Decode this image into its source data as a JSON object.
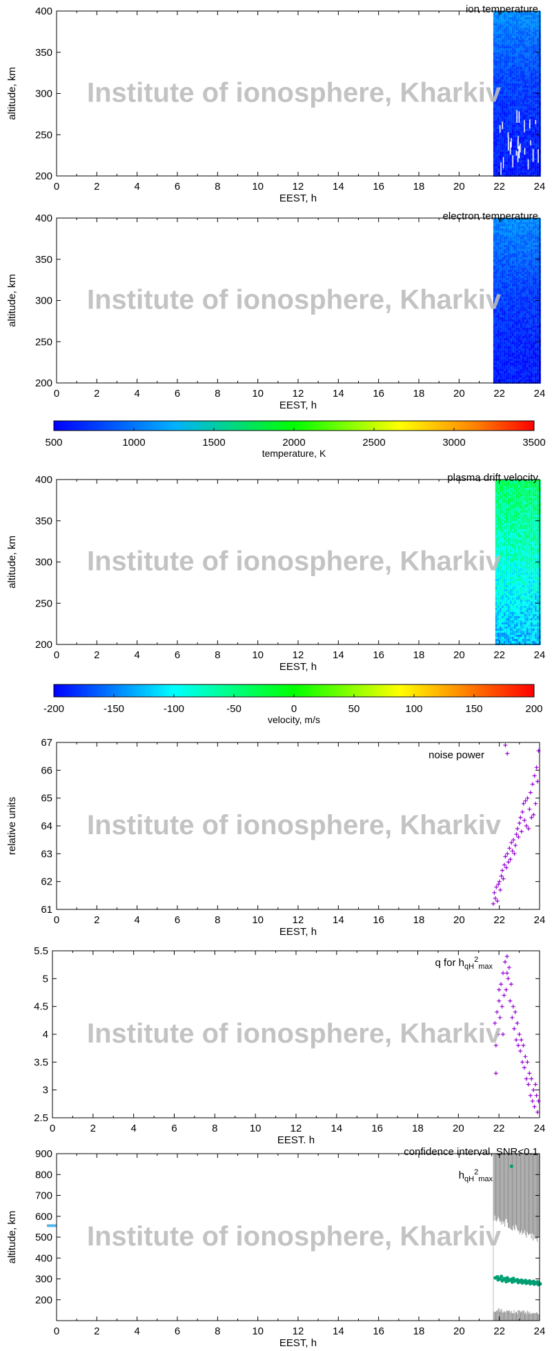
{
  "watermark": "Institute of ionosphere, Kharkiv",
  "colorbars": [
    {
      "label": "temperature, K",
      "ticks": [
        "500",
        "1000",
        "1500",
        "2000",
        "2500",
        "3000",
        "3500"
      ]
    },
    {
      "label": "velocity, m/s",
      "ticks": [
        "-200",
        "-150",
        "-100",
        "-50",
        "0",
        "50",
        "100",
        "150",
        "200"
      ]
    }
  ],
  "chart_data": [
    {
      "type": "heatmap",
      "title": "ion temperature",
      "xlabel": "EEST, h",
      "ylabel": "altitude, km",
      "xlim": [
        0,
        24
      ],
      "ylim": [
        200,
        400
      ],
      "xticks": [
        "0",
        "2",
        "4",
        "6",
        "8",
        "10",
        "12",
        "14",
        "16",
        "18",
        "20",
        "22",
        "24"
      ],
      "yticks": [
        "200",
        "250",
        "300",
        "350",
        "400"
      ],
      "data_x_range": [
        21.7,
        24
      ],
      "colorscale": "temperature, K",
      "value_range": [
        500,
        3500
      ],
      "typical_value": "≈800–1300 K, higher near 400 km"
    },
    {
      "type": "heatmap",
      "title": "electron temperature",
      "xlabel": "EEST, h",
      "ylabel": "altitude, km",
      "xlim": [
        0,
        24
      ],
      "ylim": [
        200,
        400
      ],
      "xticks": [
        "0",
        "2",
        "4",
        "6",
        "8",
        "10",
        "12",
        "14",
        "16",
        "18",
        "20",
        "22",
        "24"
      ],
      "yticks": [
        "200",
        "250",
        "300",
        "350",
        "400"
      ],
      "data_x_range": [
        21.7,
        24
      ],
      "colorscale": "temperature, K",
      "value_range": [
        500,
        3500
      ],
      "typical_value": "≈800–1300 K"
    },
    {
      "type": "heatmap",
      "title": "plasma drift velocity",
      "xlabel": "EEST, h",
      "ylabel": "altitude, km",
      "xlim": [
        0,
        24
      ],
      "ylim": [
        200,
        400
      ],
      "xticks": [
        "0",
        "2",
        "4",
        "6",
        "8",
        "10",
        "12",
        "14",
        "16",
        "18",
        "20",
        "22",
        "24"
      ],
      "yticks": [
        "200",
        "250",
        "300",
        "350",
        "400"
      ],
      "data_x_range": [
        21.8,
        24
      ],
      "colorscale": "velocity, m/s",
      "value_range": [
        -200,
        200
      ],
      "typical_value": "≈-100 to -20 m/s"
    },
    {
      "type": "scatter",
      "title": "noise power",
      "xlabel": "EEST, h",
      "ylabel": "relative units",
      "xlim": [
        0,
        24
      ],
      "ylim": [
        61,
        67
      ],
      "xticks": [
        "0",
        "2",
        "4",
        "6",
        "8",
        "10",
        "12",
        "14",
        "16",
        "18",
        "20",
        "22",
        "24"
      ],
      "yticks": [
        "61",
        "62",
        "63",
        "64",
        "65",
        "66",
        "67"
      ],
      "x": [
        21.7,
        21.75,
        21.8,
        21.85,
        21.9,
        21.95,
        22.0,
        22.05,
        22.1,
        22.15,
        22.2,
        22.25,
        22.3,
        22.35,
        22.4,
        22.45,
        22.5,
        22.55,
        22.6,
        22.65,
        22.7,
        22.75,
        22.8,
        22.85,
        22.9,
        22.95,
        23.0,
        23.05,
        23.1,
        23.15,
        23.2,
        23.25,
        23.3,
        23.35,
        23.4,
        23.45,
        23.5,
        23.55,
        23.6,
        23.65,
        23.7,
        23.75,
        23.8,
        23.85,
        23.9,
        23.95,
        22.3,
        22.4
      ],
      "y": [
        61.2,
        61.6,
        61.4,
        61.8,
        61.3,
        61.9,
        62.0,
        61.7,
        62.2,
        62.4,
        62.1,
        62.6,
        62.9,
        62.5,
        63.0,
        62.7,
        63.2,
        62.8,
        63.4,
        63.1,
        63.5,
        63.0,
        63.3,
        63.7,
        63.9,
        63.6,
        64.1,
        64.3,
        63.8,
        64.5,
        64.8,
        64.2,
        64.9,
        64.0,
        65.0,
        63.9,
        64.6,
        65.2,
        64.3,
        65.5,
        64.4,
        65.8,
        64.8,
        66.1,
        65.6,
        66.7,
        66.9,
        66.6
      ]
    },
    {
      "type": "scatter",
      "title": "q for h",
      "title_sub": "qH",
      "title_sup": "2",
      "title_sub2": "max",
      "xlabel": "EEST. h",
      "ylabel": "",
      "xlim": [
        0,
        24
      ],
      "ylim": [
        2.5,
        5.5
      ],
      "xticks": [
        "0",
        "2",
        "4",
        "6",
        "8",
        "10",
        "12",
        "14",
        "16",
        "18",
        "20",
        "22",
        "24"
      ],
      "yticks": [
        "2.5",
        "3",
        "3.5",
        "4",
        "4.5",
        "5",
        "5.5"
      ],
      "x": [
        21.8,
        21.85,
        21.9,
        21.95,
        22.0,
        22.05,
        22.1,
        22.15,
        22.2,
        22.25,
        22.3,
        22.35,
        22.4,
        22.45,
        22.5,
        22.55,
        22.6,
        22.65,
        22.7,
        22.75,
        22.8,
        22.85,
        22.9,
        22.95,
        23.0,
        23.05,
        23.1,
        23.15,
        23.2,
        23.25,
        23.3,
        23.35,
        23.4,
        23.45,
        23.5,
        23.55,
        23.6,
        23.65,
        23.7,
        23.75,
        23.8,
        23.85,
        23.9,
        23.95,
        21.85,
        22.0,
        22.2,
        22.4
      ],
      "y": [
        4.2,
        3.3,
        4.4,
        4.0,
        4.6,
        4.3,
        4.9,
        4.5,
        5.1,
        4.7,
        5.3,
        4.8,
        5.4,
        5.0,
        5.2,
        4.6,
        4.9,
        4.3,
        4.5,
        4.1,
        4.4,
        3.9,
        4.2,
        3.8,
        4.0,
        3.7,
        3.9,
        3.5,
        3.8,
        3.4,
        3.6,
        3.2,
        3.5,
        3.1,
        3.3,
        2.9,
        3.2,
        2.8,
        3.0,
        2.7,
        3.1,
        2.9,
        2.6,
        2.8,
        3.8,
        4.8,
        4.0,
        5.1
      ]
    },
    {
      "type": "scatter",
      "title": "confidence interval, SNR<0.1",
      "ylabel": "altitude, km",
      "xlabel": "EEST, h",
      "series_label": "h",
      "series_sub": "qH",
      "series_sup": "2",
      "series_sub2": "max",
      "xlim": [
        0,
        24
      ],
      "ylim": [
        100,
        900
      ],
      "xticks": [
        "0",
        "2",
        "4",
        "6",
        "8",
        "10",
        "12",
        "14",
        "16",
        "18",
        "20",
        "22",
        "24"
      ],
      "yticks": [
        "200",
        "300",
        "400",
        "500",
        "600",
        "700",
        "800",
        "900"
      ],
      "x": [
        21.8,
        21.9,
        22.0,
        22.1,
        22.2,
        22.3,
        22.4,
        22.5,
        22.6,
        22.7,
        22.8,
        22.9,
        23.0,
        23.1,
        23.2,
        23.3,
        23.4,
        23.5,
        23.6,
        23.7,
        23.8,
        23.9,
        22.6
      ],
      "y": [
        305,
        310,
        300,
        312,
        296,
        300,
        305,
        294,
        298,
        302,
        292,
        296,
        290,
        294,
        288,
        292,
        286,
        290,
        284,
        288,
        282,
        286,
        840
      ],
      "band_upper": [
        [
          21.7,
          900
        ],
        [
          21.8,
          600
        ],
        [
          22.5,
          570
        ],
        [
          23.2,
          520
        ],
        [
          24,
          480
        ]
      ],
      "band_lower": [
        [
          21.7,
          150
        ],
        [
          24,
          130
        ]
      ]
    }
  ]
}
